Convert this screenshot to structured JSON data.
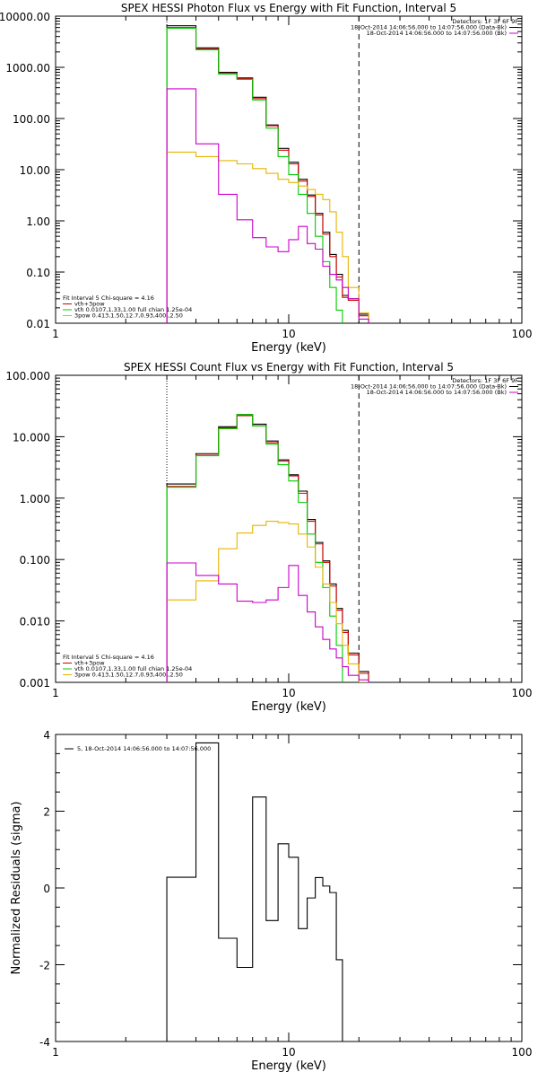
{
  "colors": {
    "data": "#000000",
    "total_fit": "#d40000",
    "thermal": "#00cc00",
    "powerlaw": "#e8b400",
    "background": "#cc00cc"
  },
  "chart_data": [
    {
      "type": "line",
      "step": true,
      "title": "SPEX HESSI Photon Flux vs Energy with Fit Function, Interval 5",
      "xlabel": "Energy (keV)",
      "ylabel": "",
      "xscale": "log",
      "yscale": "log",
      "xlim": [
        1,
        100
      ],
      "ylim": [
        0.01,
        10000
      ],
      "xticks": [
        {
          "value": 1,
          "label": "1"
        },
        {
          "value": 10,
          "label": "10"
        },
        {
          "value": 100,
          "label": "100"
        }
      ],
      "yticks": [
        {
          "value": 0.01,
          "label": "0.01"
        },
        {
          "value": 0.1,
          "label": "0.10"
        },
        {
          "value": 1,
          "label": "1.00"
        },
        {
          "value": 10,
          "label": "10.00"
        },
        {
          "value": 100,
          "label": "100.00"
        },
        {
          "value": 1000,
          "label": "1000.00"
        },
        {
          "value": 10000,
          "label": "10000.00"
        }
      ],
      "vlines": [
        {
          "x": 3,
          "style": "dotted"
        },
        {
          "x": 20,
          "style": "dashed"
        }
      ],
      "legend_top": {
        "lines": [
          {
            "text": "Detectors: 1F 3F 6F 9F",
            "color": ""
          },
          {
            "text": "18-Oct-2014 14:06:56.000 to 14:07:56.000 (Data-Bk)",
            "color": "data"
          },
          {
            "text": "18-Oct-2014 14:06:56.000 to 14:07:56.000 (Bk)",
            "color": "background"
          }
        ]
      },
      "legend_bottom": {
        "lines": [
          {
            "text": "Fit Interval 5   Chi-square = 4.16",
            "color": ""
          },
          {
            "text": "vth+3pow",
            "color": "total_fit"
          },
          {
            "text": "vth 0.0107,1.33,1.00  full chian 1.25e-04",
            "color": "thermal"
          },
          {
            "text": "3pow 0.413,1.50,12.7,0.93,400.,2.50",
            "color": "powerlaw"
          }
        ]
      },
      "bin_edges": [
        3,
        4,
        5,
        6,
        7,
        8,
        9,
        10,
        11,
        12,
        13,
        14,
        15,
        16,
        17,
        18,
        20,
        22
      ],
      "series": [
        {
          "key": "data",
          "color": "data",
          "values": [
            6500,
            2400,
            800,
            620,
            260,
            75,
            26,
            14,
            6.5,
            3.2,
            1.4,
            0.6,
            0.22,
            0.09,
            0.035,
            0.03,
            0.015
          ]
        },
        {
          "key": "total_fit",
          "color": "total_fit",
          "values": [
            6000,
            2300,
            760,
            600,
            245,
            72,
            24,
            13,
            6,
            3,
            1.3,
            0.55,
            0.2,
            0.08,
            0.032,
            0.028,
            0.014
          ]
        },
        {
          "key": "thermal",
          "color": "thermal",
          "values": [
            5800,
            2200,
            740,
            580,
            230,
            65,
            18,
            8,
            3.3,
            1.4,
            0.5,
            0.16,
            0.05,
            0.018
          ]
        },
        {
          "key": "powerlaw",
          "color": "powerlaw",
          "values": [
            22,
            18,
            15,
            13,
            10.5,
            8.5,
            6.5,
            5.6,
            4.8,
            4.1,
            3.3,
            2.6,
            1.5,
            0.6,
            0.2,
            0.05,
            0.016
          ]
        },
        {
          "key": "background",
          "color": "background",
          "values": [
            380,
            32,
            3.3,
            1.05,
            0.47,
            0.31,
            0.25,
            0.43,
            0.78,
            0.36,
            0.28,
            0.13,
            0.09,
            0.07,
            0.05,
            0.03,
            0.012
          ]
        }
      ]
    },
    {
      "type": "line",
      "step": true,
      "title": "SPEX HESSI Count Flux vs Energy with Fit Function, Interval 5",
      "xlabel": "Energy (keV)",
      "ylabel": "",
      "xscale": "log",
      "yscale": "log",
      "xlim": [
        1,
        100
      ],
      "ylim": [
        0.001,
        100
      ],
      "xticks": [
        {
          "value": 1,
          "label": "1"
        },
        {
          "value": 10,
          "label": "10"
        },
        {
          "value": 100,
          "label": "100"
        }
      ],
      "yticks": [
        {
          "value": 0.001,
          "label": "0.001"
        },
        {
          "value": 0.01,
          "label": "0.010"
        },
        {
          "value": 0.1,
          "label": "0.100"
        },
        {
          "value": 1,
          "label": "1.000"
        },
        {
          "value": 10,
          "label": "10.000"
        },
        {
          "value": 100,
          "label": "100.000"
        }
      ],
      "vlines": [
        {
          "x": 3,
          "style": "dotted"
        },
        {
          "x": 20,
          "style": "dashed"
        }
      ],
      "legend_top": {
        "lines": [
          {
            "text": "Detectors: 1F 3F 6F 9F",
            "color": ""
          },
          {
            "text": "18-Oct-2014 14:06:56.000 to 14:07:56.000 (Data-Bk)",
            "color": "data"
          },
          {
            "text": "18-Oct-2014 14:06:56.000 to 14:07:56.000 (Bk)",
            "color": "background"
          }
        ]
      },
      "legend_bottom": {
        "lines": [
          {
            "text": "Fit Interval 5   Chi-square = 4.16",
            "color": ""
          },
          {
            "text": "vth+3pow",
            "color": "total_fit"
          },
          {
            "text": "vth 0.0107,1.33,1.00  full chian 1.25e-04",
            "color": "thermal"
          },
          {
            "text": "3pow 0.413,1.50,12.7,0.93,400.,2.50",
            "color": "powerlaw"
          }
        ]
      },
      "bin_edges": [
        3,
        4,
        5,
        6,
        7,
        8,
        9,
        10,
        11,
        12,
        13,
        14,
        15,
        16,
        17,
        18,
        20,
        22
      ],
      "series": [
        {
          "key": "data",
          "color": "data",
          "values": [
            1.7,
            5.3,
            14.5,
            23,
            16,
            8.5,
            4.2,
            2.4,
            1.3,
            0.45,
            0.19,
            0.095,
            0.04,
            0.016,
            0.007,
            0.003,
            0.0015
          ]
        },
        {
          "key": "total_fit",
          "color": "total_fit",
          "values": [
            1.55,
            5,
            14,
            22,
            15,
            8,
            4,
            2.3,
            1.2,
            0.42,
            0.18,
            0.09,
            0.037,
            0.015,
            0.0065,
            0.0028,
            0.0014
          ]
        },
        {
          "key": "thermal",
          "color": "thermal",
          "values": [
            1.5,
            4.9,
            13.5,
            23,
            15,
            7.6,
            3.5,
            1.9,
            0.85,
            0.26,
            0.09,
            0.035,
            0.012,
            0.004
          ]
        },
        {
          "key": "powerlaw",
          "color": "powerlaw",
          "values": [
            0.022,
            0.045,
            0.15,
            0.27,
            0.36,
            0.42,
            0.4,
            0.38,
            0.26,
            0.16,
            0.075,
            0.04,
            0.02,
            0.009,
            0.004,
            0.002,
            0.001
          ]
        },
        {
          "key": "background",
          "color": "background",
          "values": [
            0.088,
            0.055,
            0.04,
            0.021,
            0.02,
            0.022,
            0.035,
            0.08,
            0.026,
            0.014,
            0.008,
            0.005,
            0.0035,
            0.0025,
            0.0018,
            0.0013,
            0.0011
          ]
        }
      ]
    },
    {
      "type": "line",
      "step": true,
      "title": "",
      "xlabel": "Energy (keV)",
      "ylabel": "Normalized Residuals (sigma)",
      "xscale": "log",
      "yscale": "linear",
      "xlim": [
        1,
        100
      ],
      "ylim": [
        -4,
        4
      ],
      "xticks": [
        {
          "value": 1,
          "label": "1"
        },
        {
          "value": 10,
          "label": "10"
        },
        {
          "value": 100,
          "label": "100"
        }
      ],
      "yticks": [
        {
          "value": -4,
          "label": "-4"
        },
        {
          "value": -2,
          "label": "-2"
        },
        {
          "value": 0,
          "label": "0"
        },
        {
          "value": 2,
          "label": "2"
        },
        {
          "value": 4,
          "label": "4"
        }
      ],
      "vlines": [],
      "legend_top": {
        "lines": [
          {
            "text": "5, 18-Oct-2014 14:06:56.000 to 14:07:56.000",
            "color": "data"
          }
        ]
      },
      "legend_bottom": {
        "lines": []
      },
      "bin_edges": [
        3,
        4,
        5,
        6,
        7,
        8,
        9,
        10,
        11,
        12,
        13,
        14,
        15,
        16,
        17,
        18,
        20
      ],
      "series": [
        {
          "key": "residuals",
          "color": "data",
          "values": [
            0.28,
            3.78,
            -1.31,
            -2.07,
            2.37,
            -0.85,
            1.15,
            0.8,
            -1.06,
            -0.26,
            0.27,
            0.05,
            -0.12,
            -1.87
          ]
        }
      ],
      "close_to_ymin": true
    }
  ]
}
